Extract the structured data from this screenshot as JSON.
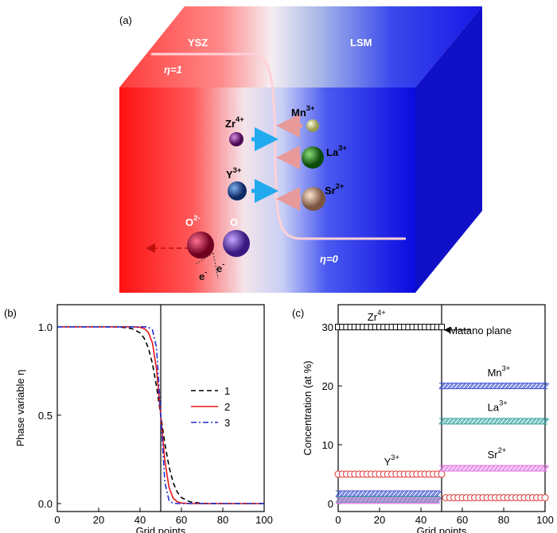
{
  "diagram": {
    "panel": "(a)",
    "regions": [
      "YSZ",
      "LSM"
    ],
    "eta_labels": [
      "η=1",
      "η=0"
    ],
    "ions": [
      {
        "text": "Zr",
        "sup": "4+"
      },
      {
        "text": "Y",
        "sup": "3+"
      },
      {
        "text": "Mn",
        "sup": "3+"
      },
      {
        "text": "La",
        "sup": "3+"
      },
      {
        "text": "Sr",
        "sup": "2+"
      },
      {
        "text": "O",
        "sup": "2-"
      },
      {
        "text": "O",
        "sup": ""
      }
    ],
    "electrons": [
      {
        "text": "e",
        "sup": "-"
      },
      {
        "text": "e",
        "sup": "-"
      }
    ]
  },
  "chart_data": [
    {
      "type": "line",
      "panel": "(b)",
      "x_label": "Grid points",
      "y_label": "Phase variable η",
      "x": [
        0,
        10,
        20,
        30,
        36,
        40,
        42,
        44,
        46,
        48,
        50,
        52,
        54,
        56,
        58,
        60,
        64,
        70,
        80,
        90,
        100
      ],
      "series": [
        {
          "name": "1",
          "color": "#000000",
          "dash": "6,4",
          "values": [
            1,
            1,
            1,
            0.999,
            0.99,
            0.966,
            0.935,
            0.881,
            0.791,
            0.661,
            0.5,
            0.339,
            0.209,
            0.119,
            0.065,
            0.034,
            0.01,
            0.001,
            0,
            0,
            0
          ]
        },
        {
          "name": "2",
          "color": "#e8161b",
          "dash": "",
          "values": [
            1,
            1,
            1,
            1,
            1,
            0.997,
            0.99,
            0.969,
            0.908,
            0.758,
            0.5,
            0.242,
            0.092,
            0.031,
            0.01,
            0.003,
            0,
            0,
            0,
            0,
            0
          ]
        },
        {
          "name": "3",
          "color": "#1f2fd1",
          "dash": "7,3,2,3",
          "values": [
            1,
            1,
            1,
            1,
            1,
            1,
            1,
            0.998,
            0.982,
            0.881,
            0.5,
            0.119,
            0.018,
            0.002,
            0,
            0,
            0,
            0,
            0,
            0,
            0
          ]
        }
      ],
      "vline": 50,
      "xlim": [
        0,
        100
      ],
      "ylim": [
        -0.045,
        1.125
      ],
      "xticks": [
        0,
        20,
        40,
        60,
        80,
        100
      ],
      "yticks": [
        {
          "value": 0,
          "label": "0.0"
        },
        {
          "value": 0.5,
          "label": "0.5"
        },
        {
          "value": 1,
          "label": "1.0"
        }
      ],
      "legend": "right"
    },
    {
      "type": "scatter",
      "panel": "(c)",
      "x_label": "Grid points",
      "y_label": "Concentration (at %)",
      "annotation": "Matano plane",
      "x": [
        0,
        2,
        4,
        6,
        8,
        10,
        12,
        14,
        16,
        18,
        20,
        22,
        24,
        26,
        28,
        30,
        32,
        34,
        36,
        38,
        40,
        42,
        44,
        46,
        48,
        50,
        52,
        54,
        56,
        58,
        60,
        62,
        64,
        66,
        68,
        70,
        72,
        74,
        76,
        78,
        80,
        82,
        84,
        86,
        88,
        90,
        92,
        94,
        96,
        98,
        100
      ],
      "series": [
        {
          "name": "Zr",
          "name_sup": "4+",
          "color": "#000000",
          "marker": "square",
          "values": [
            30,
            30,
            30,
            30,
            30,
            30,
            30,
            30,
            30,
            30,
            30,
            30,
            30,
            30,
            30,
            30,
            30,
            30,
            30,
            30,
            30,
            30,
            30,
            30,
            30,
            30,
            null,
            null,
            null,
            null,
            null,
            null,
            null,
            null,
            null,
            null,
            null,
            null,
            null,
            null,
            null,
            null,
            null,
            null,
            null,
            null,
            null,
            null,
            null,
            null,
            null
          ]
        },
        {
          "name": "Y",
          "name_sup": "3+",
          "color": "#e03535",
          "marker": "circle",
          "values": [
            5,
            5,
            5,
            5,
            5,
            5,
            5,
            5,
            5,
            5,
            5,
            5,
            5,
            5,
            5,
            5,
            5,
            5,
            5,
            5,
            5,
            5,
            5,
            5,
            5,
            5,
            1,
            1,
            1,
            1,
            1,
            1,
            1,
            1,
            1,
            1,
            1,
            1,
            1,
            1,
            1,
            1,
            1,
            1,
            1,
            1,
            1,
            1,
            1,
            1,
            1
          ]
        },
        {
          "name": "Mn",
          "name_sup": "3+",
          "color": "#3a4fd6",
          "marker": "hatch",
          "values": [
            1.7,
            1.7,
            1.7,
            1.7,
            1.7,
            1.7,
            1.7,
            1.7,
            1.7,
            1.7,
            1.7,
            1.7,
            1.7,
            1.7,
            1.7,
            1.7,
            1.7,
            1.7,
            1.7,
            1.7,
            1.7,
            1.7,
            1.7,
            1.7,
            1.7,
            20,
            20,
            20,
            20,
            20,
            20,
            20,
            20,
            20,
            20,
            20,
            20,
            20,
            20,
            20,
            20,
            20,
            20,
            20,
            20,
            20,
            20,
            20,
            20,
            20,
            20
          ]
        },
        {
          "name": "La",
          "name_sup": "3+",
          "color": "#2f9e9e",
          "marker": "hatch",
          "values": [
            0.7,
            0.7,
            0.7,
            0.7,
            0.7,
            0.7,
            0.7,
            0.7,
            0.7,
            0.7,
            0.7,
            0.7,
            0.7,
            0.7,
            0.7,
            0.7,
            0.7,
            0.7,
            0.7,
            0.7,
            0.7,
            0.7,
            0.7,
            0.7,
            0.7,
            14,
            14,
            14,
            14,
            14,
            14,
            14,
            14,
            14,
            14,
            14,
            14,
            14,
            14,
            14,
            14,
            14,
            14,
            14,
            14,
            14,
            14,
            14,
            14,
            14,
            14
          ]
        },
        {
          "name": "Sr",
          "name_sup": "2+",
          "color": "#e274e2",
          "marker": "hatch",
          "values": [
            0.5,
            0.5,
            0.5,
            0.5,
            0.5,
            0.5,
            0.5,
            0.5,
            0.5,
            0.5,
            0.5,
            0.5,
            0.5,
            0.5,
            0.5,
            0.5,
            0.5,
            0.5,
            0.5,
            0.5,
            0.5,
            0.5,
            0.5,
            0.5,
            0.5,
            6,
            6,
            6,
            6,
            6,
            6,
            6,
            6,
            6,
            6,
            6,
            6,
            6,
            6,
            6,
            6,
            6,
            6,
            6,
            6,
            6,
            6,
            6,
            6,
            6,
            6
          ]
        }
      ],
      "vline": 50,
      "xlim": [
        0,
        100
      ],
      "ylim": [
        -1.35,
        33.8
      ],
      "xticks": [
        0,
        20,
        40,
        60,
        80,
        100
      ],
      "yticks": [
        0,
        10,
        20,
        30
      ]
    }
  ]
}
